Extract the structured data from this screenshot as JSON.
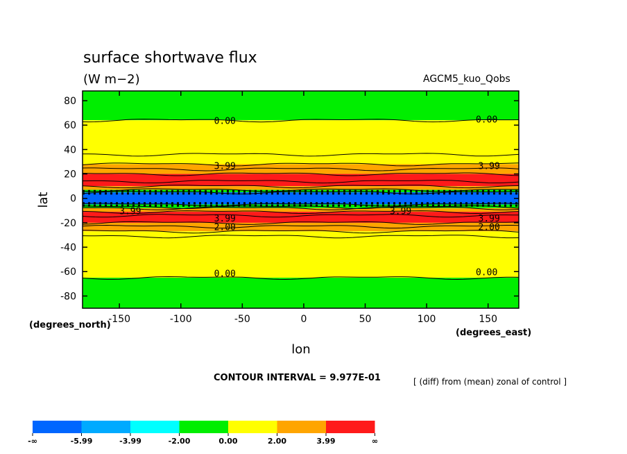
{
  "chart_data": {
    "type": "heatmap",
    "title": "surface shortwave flux",
    "units": "(W m−2)",
    "run_label": "AGCM5_kuo_Qobs",
    "xlabel": "lon",
    "ylabel": "lat",
    "x_unit_label": "(degrees_east)",
    "y_unit_label": "(degrees_north)",
    "xlim": [
      -180,
      175
    ],
    "ylim": [
      -90,
      88
    ],
    "xticks": [
      -150,
      -100,
      -50,
      0,
      50,
      100,
      150
    ],
    "yticks": [
      80,
      60,
      40,
      20,
      0,
      -20,
      -40,
      -60,
      -80
    ],
    "contour_interval_text": "CONTOUR INTERVAL = 9.977E-01",
    "note": "[ (diff) from (mean) zonal of control ]",
    "bands": [
      {
        "lat_from": 88,
        "lat_to": 64,
        "level": "0.00 to 2.00 below",
        "color": "#00ee00"
      },
      {
        "lat_from": 64,
        "lat_to": 28,
        "level": "0.00 to 2.00",
        "color": "#ffff00"
      },
      {
        "lat_from": 28,
        "lat_to": 20,
        "level": "2.00 to 3.99",
        "color": "#ffa500"
      },
      {
        "lat_from": 20,
        "lat_to": 10,
        "level": "3.99 and above",
        "color": "#ff1a1a"
      },
      {
        "lat_from": 10,
        "lat_to": 7,
        "level": "mixed",
        "color": "#ffa500"
      },
      {
        "lat_from": 7,
        "lat_to": 5,
        "level": "-2.00 to 0.00",
        "color": "#00ee00"
      },
      {
        "lat_from": 5,
        "lat_to": -5,
        "level": "-5.99 and below",
        "color": "#0066ff"
      },
      {
        "lat_from": -5,
        "lat_to": -8,
        "level": "-2.00 to 0.00",
        "color": "#00ee00"
      },
      {
        "lat_from": -8,
        "lat_to": -11,
        "level": "mixed",
        "color": "#ffa500"
      },
      {
        "lat_from": -11,
        "lat_to": -20,
        "level": "3.99 and above",
        "color": "#ff1a1a"
      },
      {
        "lat_from": -20,
        "lat_to": -27,
        "level": "2.00 to 3.99",
        "color": "#ffa500"
      },
      {
        "lat_from": -27,
        "lat_to": -65,
        "level": "0.00 to 2.00",
        "color": "#ffff00"
      },
      {
        "lat_from": -65,
        "lat_to": -90,
        "level": "below 0.00",
        "color": "#00ee00"
      }
    ],
    "contour_labels": [
      {
        "text": "0.00",
        "lon": -73,
        "lat": 61
      },
      {
        "text": "0.00",
        "lon": 140,
        "lat": 62
      },
      {
        "text": "3.99",
        "lon": -73,
        "lat": 24
      },
      {
        "text": "3.99",
        "lon": 142,
        "lat": 24
      },
      {
        "text": "3.99",
        "lon": -150,
        "lat": -13
      },
      {
        "text": "3.99",
        "lon": 70,
        "lat": -13
      },
      {
        "text": "3.99",
        "lon": -73,
        "lat": -19
      },
      {
        "text": "3.99",
        "lon": 142,
        "lat": -19
      },
      {
        "text": "2.00",
        "lon": -73,
        "lat": -26
      },
      {
        "text": "2.00",
        "lon": 142,
        "lat": -26
      },
      {
        "text": "0.00",
        "lon": -73,
        "lat": -64
      },
      {
        "text": "0.00",
        "lon": 140,
        "lat": -63
      }
    ],
    "legend": {
      "colors": [
        "#0066ff",
        "#00aaff",
        "#00ffff",
        "#00ee00",
        "#ffff00",
        "#ffa500",
        "#ff1a1a"
      ],
      "labels": [
        "-∞",
        "-5.99",
        "-3.99",
        "-2.00",
        "0.00",
        "2.00",
        "3.99",
        "∞"
      ]
    }
  }
}
